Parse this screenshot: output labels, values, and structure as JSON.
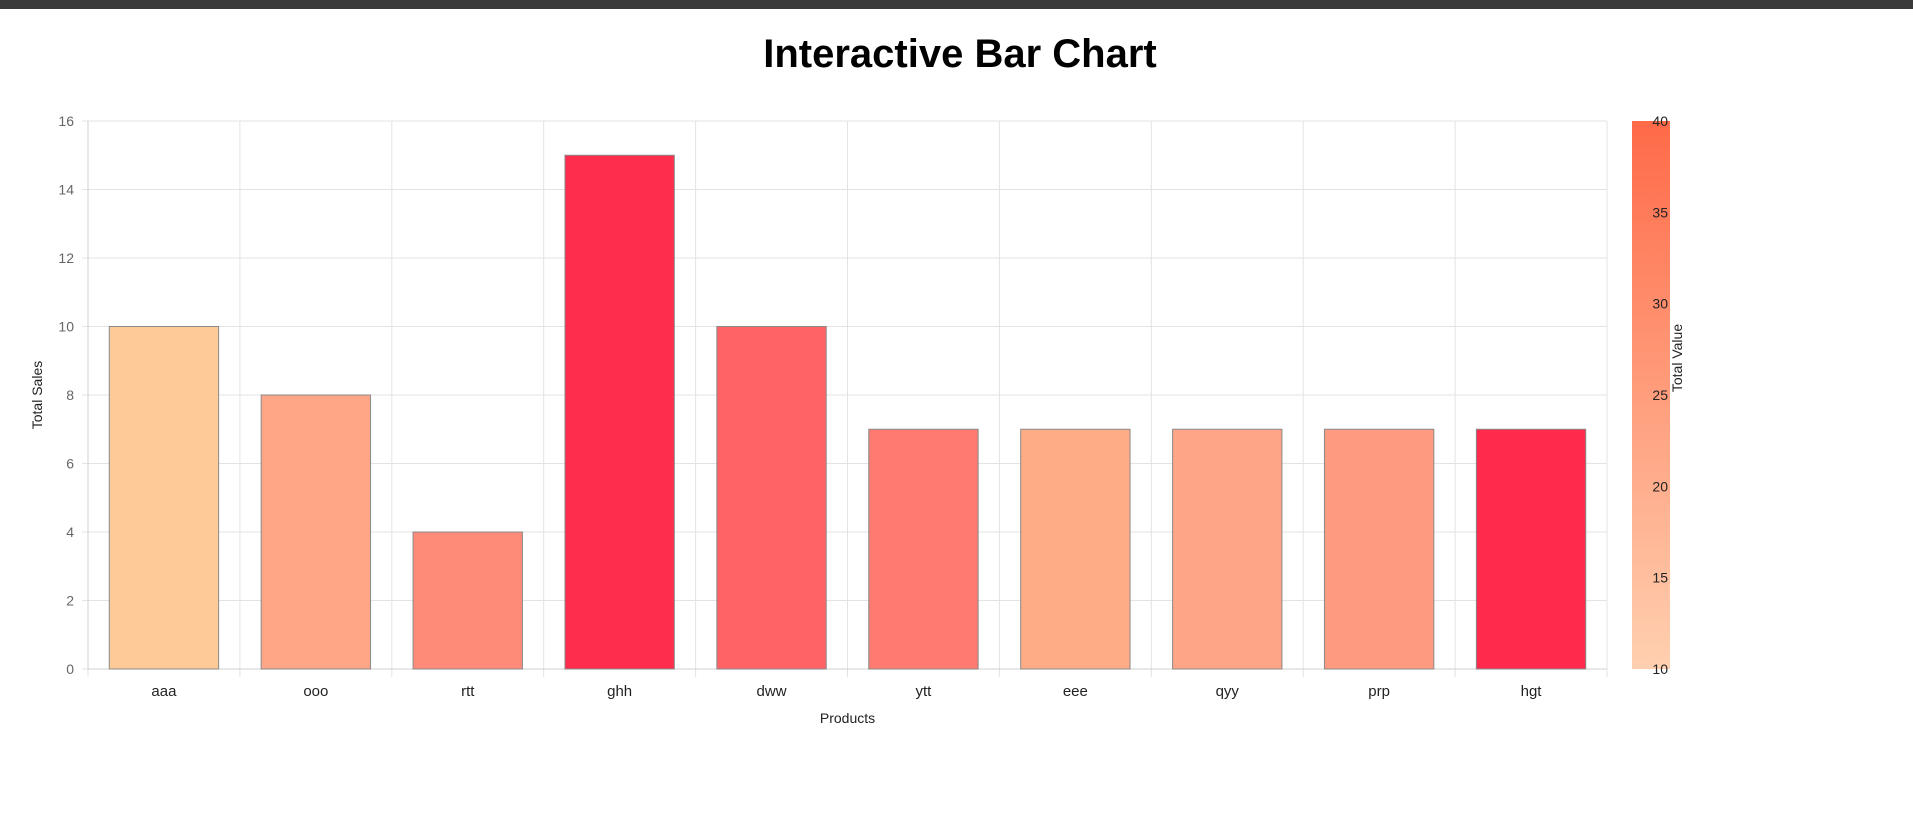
{
  "page": {
    "title": "Interactive Bar Chart"
  },
  "chart_data": {
    "type": "bar",
    "title": "Interactive Bar Chart",
    "xlabel": "Products",
    "ylabel": "Total Sales",
    "ylim": [
      0,
      16
    ],
    "ytick_step": 2,
    "grid": true,
    "categories": [
      "aaa",
      "ooo",
      "rtt",
      "ghh",
      "dww",
      "ytt",
      "eee",
      "qyy",
      "prp",
      "hgt"
    ],
    "series": [
      {
        "values": [
          10,
          8,
          4,
          15,
          10,
          7,
          7,
          7,
          7,
          7
        ],
        "colors": [
          "#fecb98",
          "#fea686",
          "#fe8a78",
          "#ff2d4d",
          "#ff6366",
          "#ff7a70",
          "#feac86",
          "#fea487",
          "#fe9a80",
          "#ff2b4c"
        ]
      }
    ],
    "color_scale": {
      "label": "Total Value",
      "range": [
        10,
        40
      ],
      "ticks": [
        10,
        15,
        20,
        25,
        30,
        35,
        40
      ],
      "color_low": "#ffd0b0",
      "color_high": "#ff6a48"
    }
  }
}
